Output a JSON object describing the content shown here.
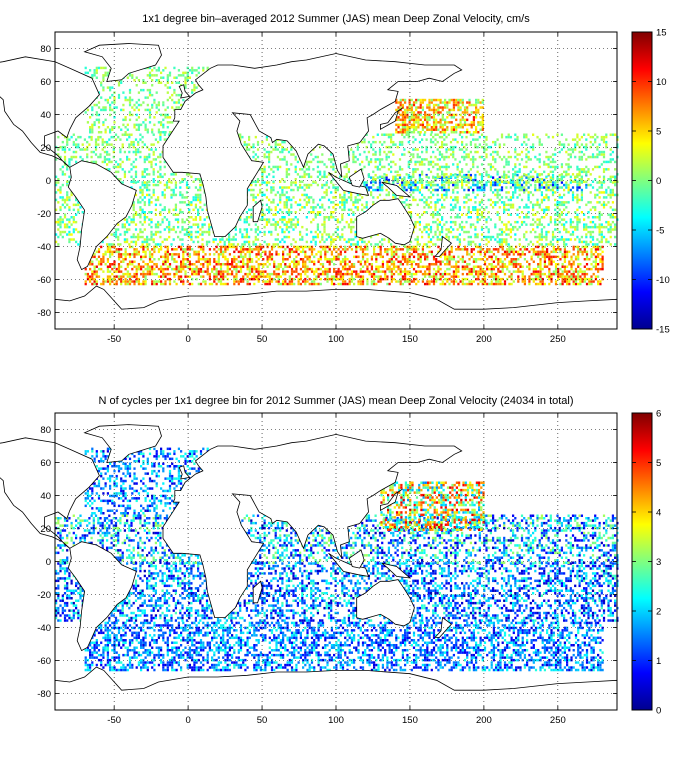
{
  "chart_data": [
    {
      "type": "heatmap",
      "title": "1x1 degree bin–averaged 2012 Summer (JAS) mean Deep Zonal Velocity, cm/s",
      "xlabel": "",
      "ylabel": "",
      "xlim": [
        -90,
        290
      ],
      "ylim": [
        -90,
        90
      ],
      "xticks": [
        -50,
        0,
        50,
        100,
        150,
        200,
        250
      ],
      "yticks": [
        80,
        60,
        40,
        20,
        0,
        -20,
        -40,
        -60,
        -80
      ],
      "grid": true,
      "colorbar": {
        "min": -15,
        "max": 15,
        "ticks": [
          15,
          10,
          5,
          0,
          -5,
          -10,
          -15
        ],
        "colormap": "jet"
      },
      "bands": [
        {
          "lat": [
            -62,
            -38
          ],
          "lon": [
            -70,
            280
          ],
          "mean": 6,
          "spread": 6,
          "density": 0.55
        },
        {
          "lat": [
            -38,
            0
          ],
          "lon": [
            -90,
            290
          ],
          "mean": 0,
          "spread": 4,
          "density": 0.35
        },
        {
          "lat": [
            -5,
            5
          ],
          "lon": [
            120,
            270
          ],
          "mean": -4,
          "spread": 8,
          "density": 0.45
        },
        {
          "lat": [
            0,
            30
          ],
          "lon": [
            -90,
            290
          ],
          "mean": 0,
          "spread": 3,
          "density": 0.3
        },
        {
          "lat": [
            30,
            50
          ],
          "lon": [
            140,
            200
          ],
          "mean": 5,
          "spread": 6,
          "density": 0.6
        },
        {
          "lat": [
            30,
            70
          ],
          "lon": [
            -70,
            20
          ],
          "mean": 0,
          "spread": 3,
          "density": 0.3
        }
      ]
    },
    {
      "type": "heatmap",
      "title": "N of cycles per 1x1 degree bin for 2012 Summer (JAS) mean Deep Zonal Velocity (24034 in total)",
      "xlabel": "",
      "ylabel": "",
      "xlim": [
        -90,
        290
      ],
      "ylim": [
        -90,
        90
      ],
      "xticks": [
        -50,
        0,
        50,
        100,
        150,
        200,
        250
      ],
      "yticks": [
        80,
        60,
        40,
        20,
        0,
        -20,
        -40,
        -60,
        -80
      ],
      "grid": true,
      "total": 24034,
      "colorbar": {
        "min": 0,
        "max": 6,
        "ticks": [
          6,
          5,
          4,
          3,
          2,
          1,
          0
        ],
        "colormap": "jet"
      },
      "bands": [
        {
          "lat": [
            -65,
            -35
          ],
          "lon": [
            -70,
            280
          ],
          "mean": 1.5,
          "spread": 1,
          "density": 0.5
        },
        {
          "lat": [
            -35,
            0
          ],
          "lon": [
            -90,
            290
          ],
          "mean": 1.5,
          "spread": 1.2,
          "density": 0.45
        },
        {
          "lat": [
            0,
            30
          ],
          "lon": [
            -90,
            290
          ],
          "mean": 1.8,
          "spread": 1.5,
          "density": 0.4
        },
        {
          "lat": [
            20,
            50
          ],
          "lon": [
            130,
            200
          ],
          "mean": 3.5,
          "spread": 2,
          "density": 0.6
        },
        {
          "lat": [
            30,
            70
          ],
          "lon": [
            -70,
            20
          ],
          "mean": 1.5,
          "spread": 1,
          "density": 0.35
        }
      ]
    }
  ],
  "colors": {
    "land": "#ffffff",
    "frame": "#000000",
    "grid": "#000000"
  }
}
